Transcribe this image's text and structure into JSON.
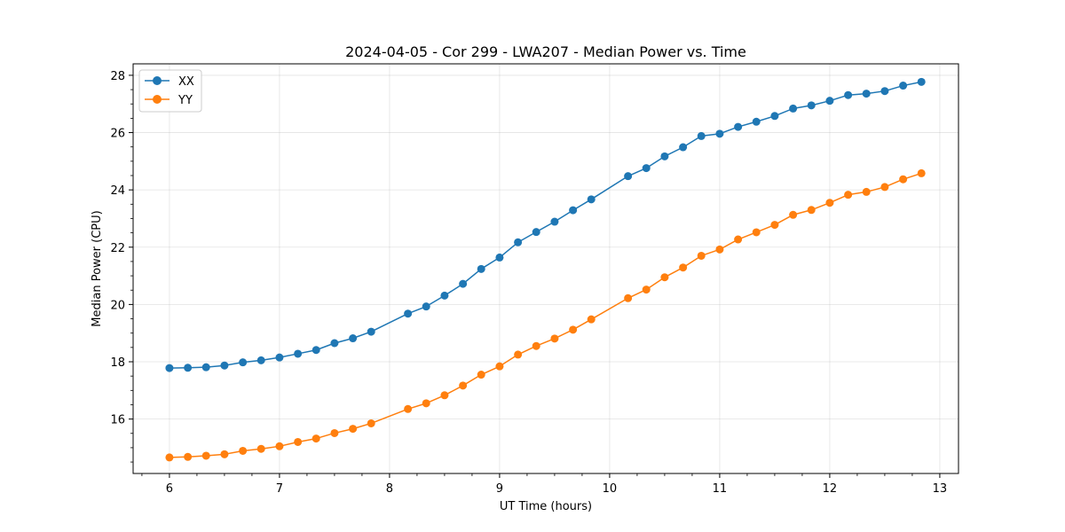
{
  "chart_data": {
    "type": "line",
    "title": "2024-04-05 - Cor 299 - LWA207 - Median Power vs. Time",
    "xlabel": "UT Time (hours)",
    "ylabel": "Median Power (CPU)",
    "xlim": [
      5.67,
      13.17
    ],
    "ylim": [
      14.1,
      28.4
    ],
    "xticks": [
      6,
      7,
      8,
      9,
      10,
      11,
      12,
      13
    ],
    "yticks": [
      16,
      18,
      20,
      22,
      24,
      26,
      28
    ],
    "grid": true,
    "legend_position": "top-left",
    "x": [
      6.0,
      6.167,
      6.333,
      6.5,
      6.667,
      6.833,
      7.0,
      7.167,
      7.333,
      7.5,
      7.667,
      7.833,
      8.167,
      8.333,
      8.5,
      8.667,
      8.833,
      9.0,
      9.167,
      9.333,
      9.5,
      9.667,
      9.833,
      10.167,
      10.333,
      10.5,
      10.667,
      10.833,
      11.0,
      11.167,
      11.333,
      11.5,
      11.667,
      11.833,
      12.0,
      12.167,
      12.333,
      12.5,
      12.667,
      12.833
    ],
    "series": [
      {
        "name": "XX",
        "color": "#1f77b4",
        "values": [
          17.78,
          17.79,
          17.81,
          17.87,
          17.98,
          18.05,
          18.15,
          18.28,
          18.41,
          18.65,
          18.82,
          19.05,
          19.68,
          19.93,
          20.31,
          20.72,
          21.24,
          21.64,
          22.17,
          22.53,
          22.89,
          23.29,
          23.67,
          24.48,
          24.76,
          25.17,
          25.49,
          25.88,
          25.96,
          26.2,
          26.38,
          26.58,
          26.84,
          26.95,
          27.11,
          27.31,
          27.36,
          27.45,
          27.64,
          27.77
        ]
      },
      {
        "name": "YY",
        "color": "#ff7f0e",
        "values": [
          14.66,
          14.68,
          14.72,
          14.77,
          14.89,
          14.96,
          15.05,
          15.2,
          15.32,
          15.51,
          15.66,
          15.85,
          16.35,
          16.55,
          16.83,
          17.17,
          17.55,
          17.84,
          18.25,
          18.55,
          18.81,
          19.12,
          19.48,
          20.22,
          20.52,
          20.95,
          21.29,
          21.7,
          21.92,
          22.27,
          22.52,
          22.78,
          23.13,
          23.3,
          23.55,
          23.83,
          23.93,
          24.1,
          24.37,
          24.58
        ]
      }
    ]
  }
}
